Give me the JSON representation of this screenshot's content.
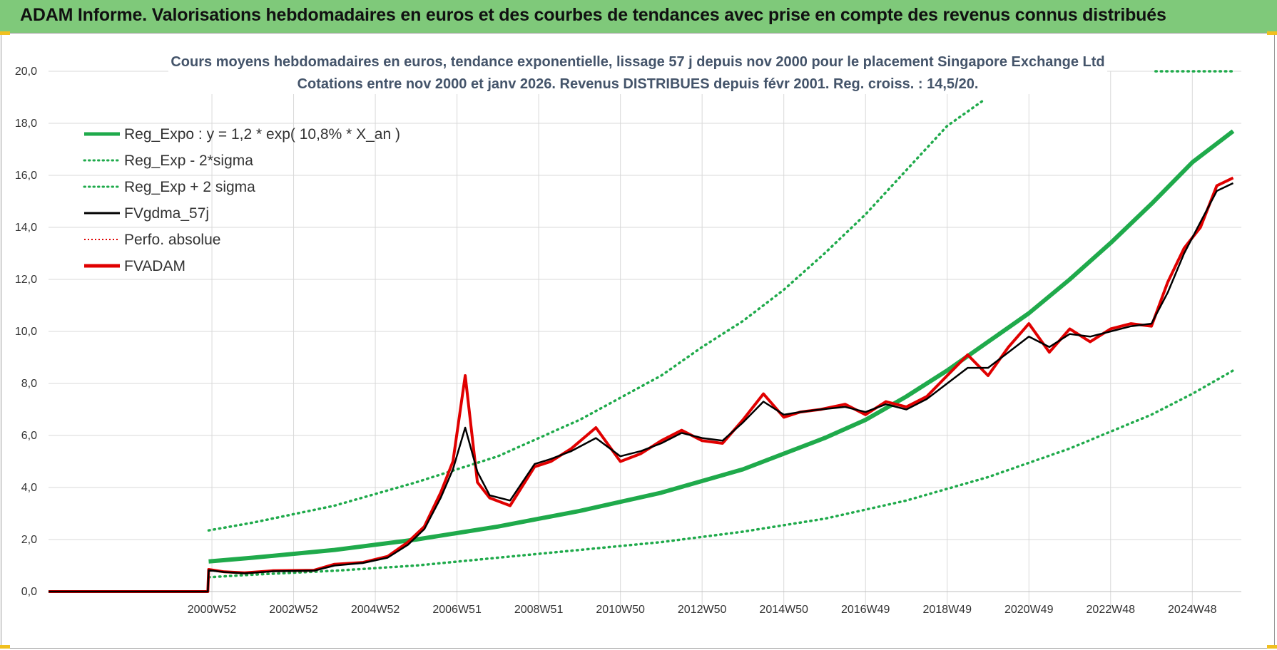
{
  "banner": {
    "title": "ADAM Informe. Valorisations hebdomadaires en euros et des courbes de tendances avec prise en compte des revenus connus distribués"
  },
  "colors": {
    "banner_bg": "#7fc97a",
    "reg_expo": "#1faa4b",
    "sigma_lines": "#1faa4b",
    "fvgdma": "#000000",
    "perfo": "#e00000",
    "fvadam": "#e00000",
    "grid": "#d9d9d9"
  },
  "chart_data": {
    "type": "line",
    "title_line1": "Cours moyens hebdomadaires en euros, tendance exponentielle, lissage 57 j depuis nov 2000 pour le placement Singapore Exchange Ltd",
    "title_line2": "Cotations entre nov 2000 et janv 2026. Revenus DISTRIBUES depuis févr 2001. Reg. croiss. : 14,5/20.",
    "xlabel": "",
    "ylabel": "",
    "xlim": [
      1997.0,
      2026.2
    ],
    "ylim": [
      0,
      20
    ],
    "y_ticks": [
      "0,0",
      "2,0",
      "4,0",
      "6,0",
      "8,0",
      "10,0",
      "12,0",
      "14,0",
      "16,0",
      "18,0",
      "20,0"
    ],
    "x_ticks": [
      {
        "label": "2000W52",
        "t": 2001.0
      },
      {
        "label": "2002W52",
        "t": 2003.0
      },
      {
        "label": "2004W52",
        "t": 2005.0
      },
      {
        "label": "2006W51",
        "t": 2007.0
      },
      {
        "label": "2008W51",
        "t": 2009.0
      },
      {
        "label": "2010W50",
        "t": 2011.0
      },
      {
        "label": "2012W50",
        "t": 2013.0
      },
      {
        "label": "2014W50",
        "t": 2015.0
      },
      {
        "label": "2016W49",
        "t": 2017.0
      },
      {
        "label": "2018W49",
        "t": 2019.0
      },
      {
        "label": "2020W49",
        "t": 2021.0
      },
      {
        "label": "2022W48",
        "t": 2023.0
      },
      {
        "label": "2024W48",
        "t": 2025.0
      }
    ],
    "grid": true,
    "legend_position": "top-left",
    "legend": [
      {
        "label": "Reg_Expo : y = 1,2 * exp( 10,8% *  X_an )",
        "style": "solid-thick",
        "color": "#1faa4b"
      },
      {
        "label": "Reg_Exp - 2*sigma",
        "style": "dotted",
        "color": "#1faa4b"
      },
      {
        "label": "Reg_Exp + 2 sigma",
        "style": "dotted",
        "color": "#1faa4b"
      },
      {
        "label": "FVgdma_57j",
        "style": "solid",
        "color": "#000000"
      },
      {
        "label": "Perfo. absolue",
        "style": "dotted",
        "color": "#e00000"
      },
      {
        "label": "FVADAM",
        "style": "solid-thick",
        "color": "#e00000"
      }
    ],
    "series": [
      {
        "name": "Reg_Expo",
        "x": [
          2000.92,
          2002,
          2004,
          2006,
          2008,
          2010,
          2012,
          2014,
          2016,
          2017,
          2018,
          2019,
          2020,
          2021,
          2022,
          2023,
          2024,
          2025,
          2026
        ],
        "values": [
          1.16,
          1.3,
          1.6,
          2.0,
          2.5,
          3.1,
          3.8,
          4.7,
          5.9,
          6.6,
          7.5,
          8.5,
          9.6,
          10.7,
          12.0,
          13.4,
          14.9,
          16.5,
          17.7
        ]
      },
      {
        "name": "Reg_Exp - 2*sigma",
        "x": [
          2000.92,
          2002,
          2004,
          2006,
          2008,
          2010,
          2012,
          2014,
          2016,
          2018,
          2020,
          2022,
          2024,
          2025,
          2026
        ],
        "values": [
          0.55,
          0.65,
          0.8,
          1.0,
          1.3,
          1.6,
          1.9,
          2.3,
          2.8,
          3.5,
          4.4,
          5.5,
          6.8,
          7.6,
          8.5
        ]
      },
      {
        "name": "Reg_Exp + 2 sigma",
        "x": [
          2000.92,
          2002,
          2004,
          2006,
          2008,
          2010,
          2012,
          2013,
          2014,
          2015,
          2016,
          2017,
          2018,
          2019,
          2019.9
        ],
        "values": [
          2.35,
          2.65,
          3.3,
          4.2,
          5.2,
          6.6,
          8.3,
          9.4,
          10.4,
          11.6,
          13.0,
          14.5,
          16.2,
          17.9,
          18.9
        ]
      },
      {
        "name": "Reg_Exp + 2 sigma (plafond)",
        "x": [
          2024.1,
          2026.0
        ],
        "values": [
          20.0,
          20.0
        ]
      },
      {
        "name": "FVgdma_57j",
        "x": [
          1997.0,
          2000.9,
          2000.92,
          2001.3,
          2001.8,
          2002.5,
          2003.5,
          2004.0,
          2004.7,
          2005.3,
          2005.8,
          2006.2,
          2006.6,
          2006.9,
          2007.2,
          2007.5,
          2007.8,
          2008.3,
          2008.9,
          2009.3,
          2009.8,
          2010.4,
          2011.0,
          2011.5,
          2012.0,
          2012.5,
          2013.0,
          2013.5,
          2014.0,
          2014.5,
          2015.0,
          2015.4,
          2015.9,
          2016.5,
          2017.0,
          2017.5,
          2018.0,
          2018.5,
          2019.0,
          2019.5,
          2020.0,
          2020.5,
          2021.0,
          2021.5,
          2022.0,
          2022.5,
          2023.0,
          2023.5,
          2024.0,
          2024.4,
          2024.8,
          2025.2,
          2025.6,
          2026.0
        ],
        "values": [
          0.0,
          0.0,
          0.82,
          0.75,
          0.7,
          0.78,
          0.8,
          1.0,
          1.1,
          1.3,
          1.8,
          2.4,
          3.6,
          4.7,
          6.3,
          4.6,
          3.7,
          3.5,
          4.9,
          5.1,
          5.4,
          5.9,
          5.2,
          5.4,
          5.7,
          6.1,
          5.9,
          5.8,
          6.5,
          7.3,
          6.8,
          6.9,
          7.0,
          7.1,
          6.9,
          7.2,
          7.0,
          7.4,
          8.0,
          8.6,
          8.6,
          9.2,
          9.8,
          9.4,
          9.9,
          9.8,
          10.0,
          10.2,
          10.3,
          11.5,
          13.0,
          14.2,
          15.4,
          15.7
        ]
      },
      {
        "name": "Perfo. absolue",
        "x": [
          1997.0,
          2000.9,
          2000.92,
          2001.3,
          2001.8,
          2002.5,
          2003.5,
          2004.0,
          2004.7,
          2005.3,
          2005.8,
          2006.2,
          2006.6,
          2006.9,
          2007.2,
          2007.5,
          2007.8,
          2008.3,
          2008.9,
          2009.3,
          2009.8,
          2010.4,
          2011.0,
          2011.5,
          2012.0,
          2012.5,
          2013.0,
          2013.5,
          2014.0,
          2014.5,
          2015.0,
          2015.4,
          2015.9,
          2016.5,
          2017.0,
          2017.5,
          2018.0,
          2018.5,
          2019.0,
          2019.5,
          2020.0,
          2020.5,
          2021.0,
          2021.5,
          2022.0,
          2022.5,
          2023.0,
          2023.5,
          2024.0,
          2024.4,
          2024.8,
          2025.2,
          2025.6,
          2026.0
        ],
        "values": [
          0.0,
          0.0,
          0.85,
          0.76,
          0.72,
          0.8,
          0.82,
          1.05,
          1.12,
          1.35,
          1.9,
          2.5,
          3.8,
          5.0,
          8.3,
          4.2,
          3.6,
          3.3,
          4.8,
          5.0,
          5.5,
          6.3,
          5.0,
          5.3,
          5.8,
          6.2,
          5.8,
          5.7,
          6.6,
          7.6,
          6.7,
          6.9,
          7.0,
          7.2,
          6.8,
          7.3,
          7.1,
          7.5,
          8.3,
          9.1,
          8.3,
          9.4,
          10.3,
          9.2,
          10.1,
          9.6,
          10.1,
          10.3,
          10.2,
          11.9,
          13.2,
          14.0,
          15.6,
          15.9
        ]
      },
      {
        "name": "FVADAM",
        "x": [
          1997.0,
          2000.9,
          2000.92,
          2001.3,
          2001.8,
          2002.5,
          2003.5,
          2004.0,
          2004.7,
          2005.3,
          2005.8,
          2006.2,
          2006.6,
          2006.9,
          2007.2,
          2007.5,
          2007.8,
          2008.3,
          2008.9,
          2009.3,
          2009.8,
          2010.4,
          2011.0,
          2011.5,
          2012.0,
          2012.5,
          2013.0,
          2013.5,
          2014.0,
          2014.5,
          2015.0,
          2015.4,
          2015.9,
          2016.5,
          2017.0,
          2017.5,
          2018.0,
          2018.5,
          2019.0,
          2019.5,
          2020.0,
          2020.5,
          2021.0,
          2021.5,
          2022.0,
          2022.5,
          2023.0,
          2023.5,
          2024.0,
          2024.4,
          2024.8,
          2025.2,
          2025.6,
          2026.0
        ],
        "values": [
          0.0,
          0.0,
          0.85,
          0.76,
          0.72,
          0.8,
          0.82,
          1.05,
          1.12,
          1.35,
          1.9,
          2.5,
          3.8,
          5.0,
          8.3,
          4.2,
          3.6,
          3.3,
          4.8,
          5.0,
          5.5,
          6.3,
          5.0,
          5.3,
          5.8,
          6.2,
          5.8,
          5.7,
          6.6,
          7.6,
          6.7,
          6.9,
          7.0,
          7.2,
          6.8,
          7.3,
          7.1,
          7.5,
          8.3,
          9.1,
          8.3,
          9.4,
          10.3,
          9.2,
          10.1,
          9.6,
          10.1,
          10.3,
          10.2,
          11.9,
          13.2,
          14.0,
          15.6,
          15.9
        ]
      }
    ]
  }
}
